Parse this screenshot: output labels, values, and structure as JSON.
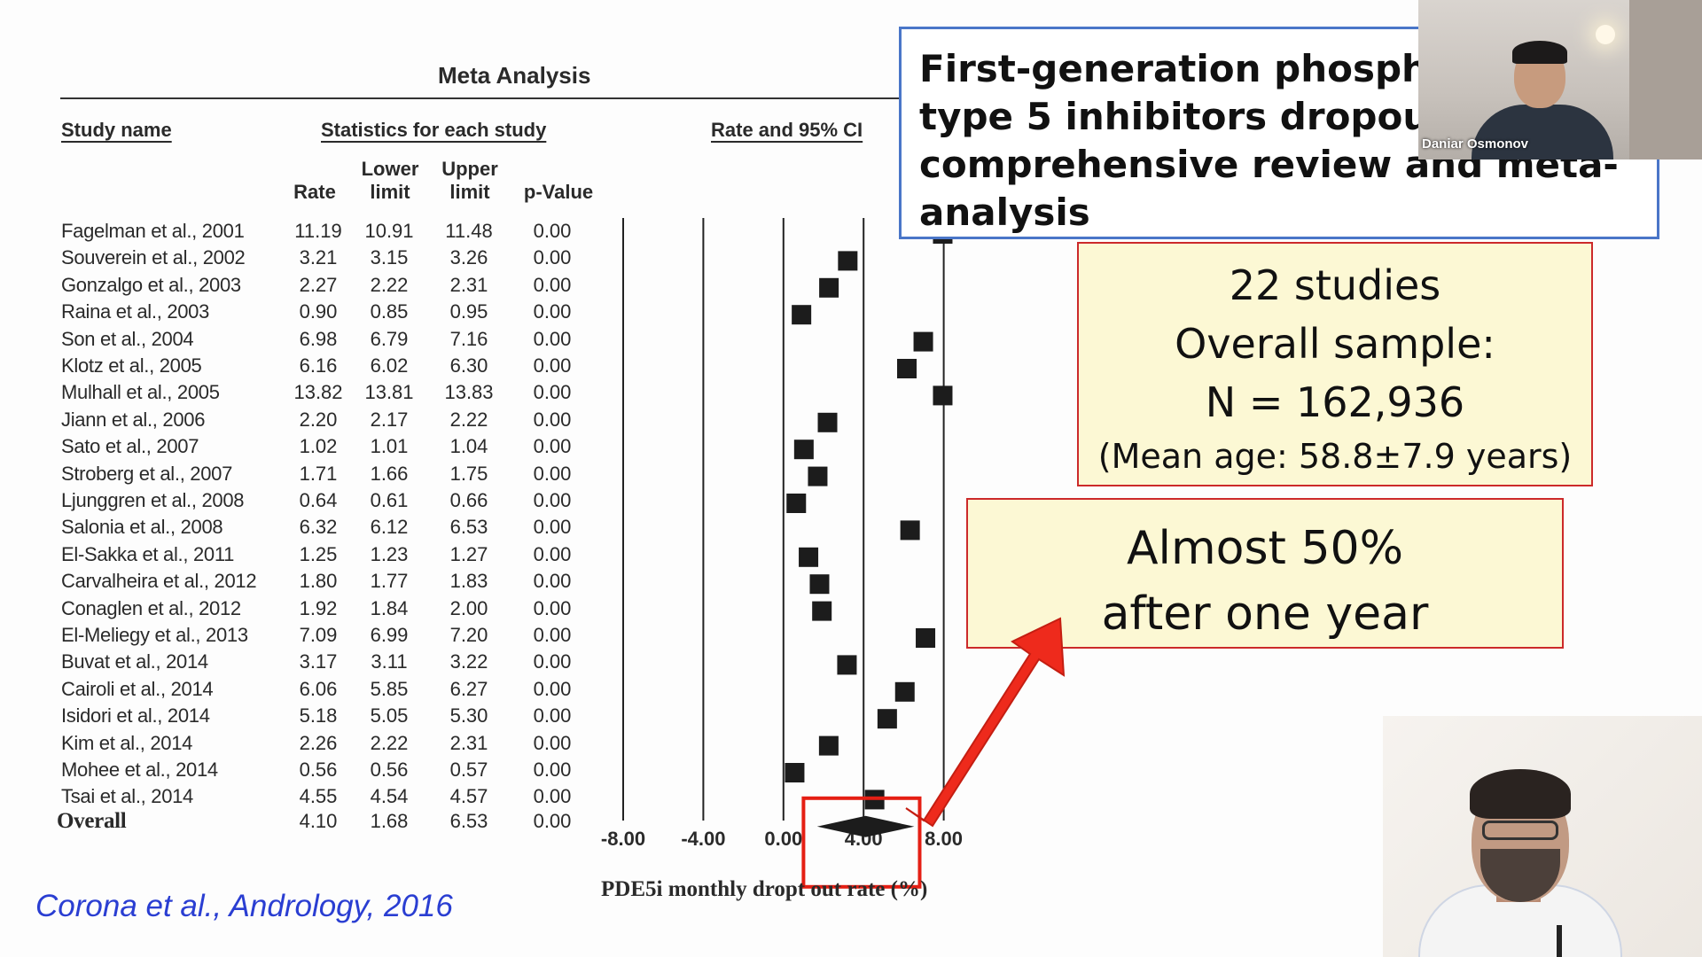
{
  "meta_analysis": {
    "title": "Meta Analysis",
    "headers": {
      "study_name": "Study name",
      "statistics": "Statistics for each study",
      "rate_ci": "Rate and 95% CI"
    },
    "columns": {
      "rate": "Rate",
      "lower": "Lower limit",
      "lower_l1": "Lower",
      "lower_l2": "limit",
      "upper_l1": "Upper",
      "upper_l2": "limit",
      "pvalue": "p-Value"
    },
    "studies": [
      {
        "name": "Fagelman et al., 2001",
        "rate": "11.19",
        "lower": "10.91",
        "upper": "11.48",
        "p": "0.00",
        "rate_value": 11.19
      },
      {
        "name": "Souverein et al., 2002",
        "rate": "3.21",
        "lower": "3.15",
        "upper": "3.26",
        "p": "0.00",
        "rate_value": 3.21
      },
      {
        "name": "Gonzalgo et al., 2003",
        "rate": "2.27",
        "lower": "2.22",
        "upper": "2.31",
        "p": "0.00",
        "rate_value": 2.27
      },
      {
        "name": "Raina et al., 2003",
        "rate": "0.90",
        "lower": "0.85",
        "upper": "0.95",
        "p": "0.00",
        "rate_value": 0.9
      },
      {
        "name": "Son et al., 2004",
        "rate": "6.98",
        "lower": "6.79",
        "upper": "7.16",
        "p": "0.00",
        "rate_value": 6.98
      },
      {
        "name": "Klotz et al., 2005",
        "rate": "6.16",
        "lower": "6.02",
        "upper": "6.30",
        "p": "0.00",
        "rate_value": 6.16
      },
      {
        "name": "Mulhall et al., 2005",
        "rate": "13.82",
        "lower": "13.81",
        "upper": "13.83",
        "p": "0.00",
        "rate_value": 13.82
      },
      {
        "name": "Jiann et al., 2006",
        "rate": "2.20",
        "lower": "2.17",
        "upper": "2.22",
        "p": "0.00",
        "rate_value": 2.2
      },
      {
        "name": "Sato et al., 2007",
        "rate": "1.02",
        "lower": "1.01",
        "upper": "1.04",
        "p": "0.00",
        "rate_value": 1.02
      },
      {
        "name": "Stroberg et al., 2007",
        "rate": "1.71",
        "lower": "1.66",
        "upper": "1.75",
        "p": "0.00",
        "rate_value": 1.71
      },
      {
        "name": "Ljunggren et al., 2008",
        "rate": "0.64",
        "lower": "0.61",
        "upper": "0.66",
        "p": "0.00",
        "rate_value": 0.64
      },
      {
        "name": "Salonia et al., 2008",
        "rate": "6.32",
        "lower": "6.12",
        "upper": "6.53",
        "p": "0.00",
        "rate_value": 6.32
      },
      {
        "name": "El-Sakka et al., 2011",
        "rate": "1.25",
        "lower": "1.23",
        "upper": "1.27",
        "p": "0.00",
        "rate_value": 1.25
      },
      {
        "name": "Carvalheira et al., 2012",
        "rate": "1.80",
        "lower": "1.77",
        "upper": "1.83",
        "p": "0.00",
        "rate_value": 1.8
      },
      {
        "name": "Conaglen et al., 2012",
        "rate": "1.92",
        "lower": "1.84",
        "upper": "2.00",
        "p": "0.00",
        "rate_value": 1.92
      },
      {
        "name": "El-Meliegy et al., 2013",
        "rate": "7.09",
        "lower": "6.99",
        "upper": "7.20",
        "p": "0.00",
        "rate_value": 7.09
      },
      {
        "name": "Buvat et al., 2014",
        "rate": "3.17",
        "lower": "3.11",
        "upper": "3.22",
        "p": "0.00",
        "rate_value": 3.17
      },
      {
        "name": "Cairoli et al., 2014",
        "rate": "6.06",
        "lower": "5.85",
        "upper": "6.27",
        "p": "0.00",
        "rate_value": 6.06
      },
      {
        "name": "Isidori et al., 2014",
        "rate": "5.18",
        "lower": "5.05",
        "upper": "5.30",
        "p": "0.00",
        "rate_value": 5.18
      },
      {
        "name": "Kim et al., 2014",
        "rate": "2.26",
        "lower": "2.22",
        "upper": "2.31",
        "p": "0.00",
        "rate_value": 2.26
      },
      {
        "name": "Mohee et al., 2014",
        "rate": "0.56",
        "lower": "0.56",
        "upper": "0.57",
        "p": "0.00",
        "rate_value": 0.56
      },
      {
        "name": "Tsai et al., 2014",
        "rate": "4.55",
        "lower": "4.54",
        "upper": "4.57",
        "p": "0.00",
        "rate_value": 4.55
      }
    ],
    "overall": {
      "name": "Overall",
      "rate": "4.10",
      "lower": "1.68",
      "upper": "6.53",
      "p": "0.00"
    }
  },
  "forest_plot": {
    "x_ticks": [
      "-8.00",
      "-4.00",
      "0.00",
      "4.00",
      "8.00"
    ],
    "x_tick_values": [
      -8,
      -4,
      0,
      4,
      8
    ],
    "xlim": [
      -8,
      8
    ],
    "x_label": "PDE5i monthly dropt out rate (%)",
    "overall_estimate": 4.1,
    "overall_lower": 1.68,
    "overall_upper": 6.53
  },
  "chart_data": {
    "type": "scatter",
    "xlabel": "PDE5i monthly dropt out rate (%)",
    "ylabel": "",
    "xlim": [
      -8,
      8
    ],
    "x_tick_labels": [
      "-8.00",
      "-4.00",
      "0.00",
      "4.00",
      "8.00"
    ],
    "categories": [
      "Fagelman et al., 2001",
      "Souverein et al., 2002",
      "Gonzalgo et al., 2003",
      "Raina et al., 2003",
      "Son et al., 2004",
      "Klotz et al., 2005",
      "Mulhall et al., 2005",
      "Jiann et al., 2006",
      "Sato et al., 2007",
      "Stroberg et al., 2007",
      "Ljunggren et al., 2008",
      "Salonia et al., 2008",
      "El-Sakka et al., 2011",
      "Carvalheira et al., 2012",
      "Conaglen et al., 2012",
      "El-Meliegy et al., 2013",
      "Buvat et al., 2014",
      "Cairoli et al., 2014",
      "Isidori et al., 2014",
      "Kim et al., 2014",
      "Mohee et al., 2014",
      "Tsai et al., 2014"
    ],
    "series": [
      {
        "values": [
          11.19,
          3.21,
          2.27,
          0.9,
          6.98,
          6.16,
          13.82,
          2.2,
          1.02,
          1.71,
          0.64,
          6.32,
          1.25,
          1.8,
          1.92,
          7.09,
          3.17,
          6.06,
          5.18,
          2.26,
          0.56,
          4.55
        ]
      }
    ],
    "overall": {
      "estimate": 4.1,
      "lower": 1.68,
      "upper": 6.53
    }
  },
  "slide": {
    "title": "First-generation phospho\ntype 5 inhibitors dropout\ncomprehensive review and meta-\nanalysis",
    "stats": {
      "studies": "22 studies",
      "sample_label": "Overall sample:",
      "sample_n": "N = 162,936",
      "mean_age": "(Mean age: 58.8±7.9 years)"
    },
    "callout": {
      "line1": "Almost 50%",
      "line2": "after one year"
    },
    "citation": "Corona et al., Andrology, 2016",
    "colors": {
      "title_border": "#4a76c8",
      "box_fill": "#fcf8d4",
      "box_border": "#cc2a2a",
      "arrow": "#ee2a1c",
      "citation": "#2a3ed2"
    }
  },
  "video": {
    "top_participant": "Daniar Osmonov"
  }
}
